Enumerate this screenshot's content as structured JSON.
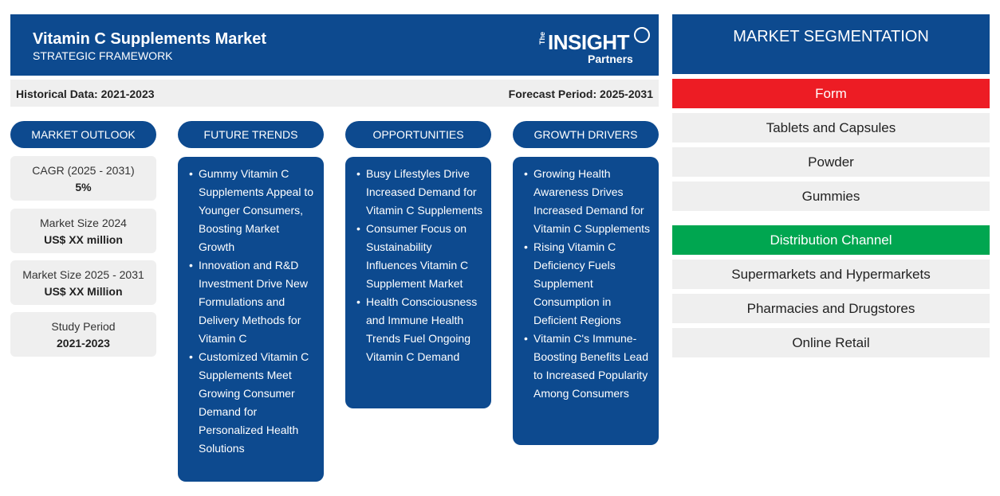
{
  "header": {
    "title": "Vitamin C Supplements Market",
    "subtitle": "STRATEGIC FRAMEWORK",
    "logo": {
      "the": "The",
      "insight": "INSIGHT",
      "partners": "Partners"
    }
  },
  "subbar": {
    "historical": "Historical Data: 2021-2023",
    "forecast": "Forecast Period: 2025-2031"
  },
  "outlook": {
    "heading": "MARKET OUTLOOK",
    "stats": [
      {
        "label": "CAGR (2025 - 2031)",
        "value": "5%"
      },
      {
        "label": "Market Size 2024",
        "value": "US$ XX million"
      },
      {
        "label": "Market Size 2025 - 2031",
        "value": "US$ XX Million"
      },
      {
        "label": "Study Period",
        "value": "2021-2023"
      }
    ]
  },
  "trends": {
    "heading": "FUTURE TRENDS",
    "items": [
      "Gummy Vitamin C Supplements Appeal to Younger Consumers, Boosting Market Growth",
      "Innovation and R&D Investment Drive New Formulations and Delivery Methods for Vitamin C",
      "Customized Vitamin C Supplements Meet Growing Consumer Demand for Personalized Health Solutions"
    ]
  },
  "opportunities": {
    "heading": "OPPORTUNITIES",
    "items": [
      "Busy Lifestyles Drive Increased Demand for Vitamin C Supplements",
      "Consumer Focus on Sustainability Influences Vitamin C Supplement Market",
      "Health Consciousness and Immune Health Trends Fuel Ongoing Vitamin C Demand"
    ]
  },
  "drivers": {
    "heading": "GROWTH DRIVERS",
    "items": [
      "Growing Health Awareness Drives Increased Demand for Vitamin C Supplements",
      "Rising Vitamin C Deficiency Fuels Supplement Consumption in Deficient Regions",
      "Vitamin C's Immune-Boosting Benefits Lead to Increased Popularity Among Consumers"
    ]
  },
  "segmentation": {
    "title": "MARKET SEGMENTATION",
    "form": {
      "heading": "Form",
      "items": [
        "Tablets and Capsules",
        "Powder",
        "Gummies"
      ]
    },
    "distribution": {
      "heading": "Distribution Channel",
      "items": [
        "Supermarkets and Hypermarkets",
        "Pharmacies and Drugstores",
        "Online Retail"
      ]
    }
  },
  "colors": {
    "primary": "#0d4a8f",
    "form_accent": "#ed1c24",
    "distribution_accent": "#00a650",
    "panel_bg": "#efefef"
  }
}
